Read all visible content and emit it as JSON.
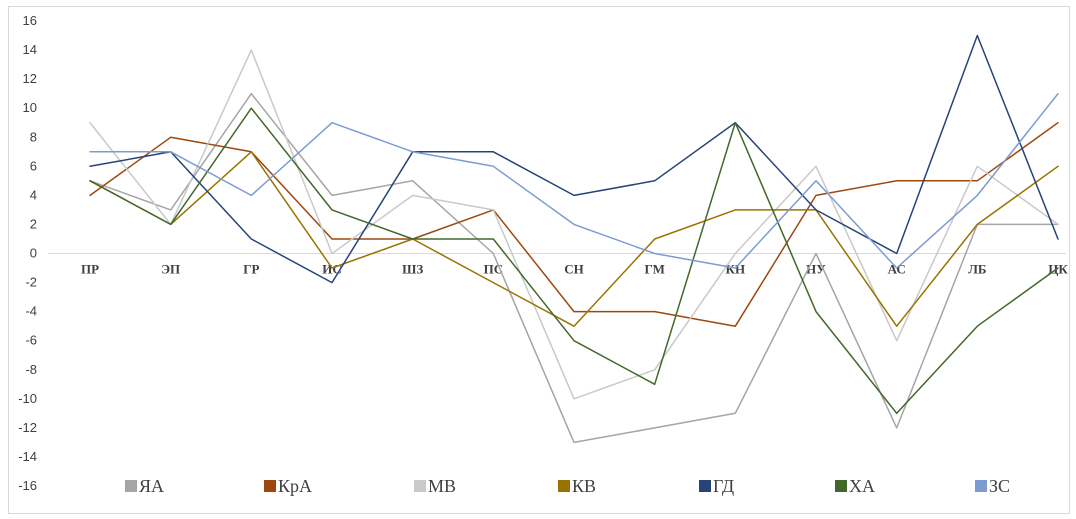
{
  "chart_data": {
    "type": "line",
    "title": "",
    "xlabel": "",
    "ylabel": "",
    "ylim": [
      -16,
      16
    ],
    "yticks": [
      16,
      14,
      12,
      10,
      8,
      6,
      4,
      2,
      0,
      -2,
      -4,
      -6,
      -8,
      -10,
      -12,
      -14,
      -16
    ],
    "grid": false,
    "legend_position": "bottom",
    "categories": [
      "ПР",
      "ЭП",
      "ГР",
      "ИС",
      "ШЗ",
      "ПС",
      "СН",
      "ГМ",
      "КН",
      "НУ",
      "АС",
      "ЛБ",
      "ЦК"
    ],
    "series": [
      {
        "name": "ЯА",
        "color": "#a5a5a5",
        "values": [
          5,
          3,
          11,
          4,
          5,
          0,
          -13,
          -12,
          -11,
          0,
          -12,
          2,
          2
        ]
      },
      {
        "name": "КрА",
        "color": "#9e480e",
        "values": [
          4,
          8,
          7,
          1,
          1,
          3,
          -4,
          -4,
          -5,
          4,
          5,
          5,
          9
        ]
      },
      {
        "name": "МВ",
        "color": "#c9c9c9",
        "values": [
          9,
          2,
          14,
          0,
          4,
          3,
          -10,
          -8,
          0,
          6,
          -6,
          6,
          2
        ]
      },
      {
        "name": "КВ",
        "color": "#997300",
        "values": [
          5,
          2,
          7,
          -1,
          1,
          -2,
          -5,
          1,
          3,
          3,
          -5,
          2,
          6
        ]
      },
      {
        "name": "ГД",
        "color": "#264478",
        "values": [
          6,
          7,
          1,
          -2,
          7,
          7,
          4,
          5,
          9,
          3,
          0,
          15,
          1
        ]
      },
      {
        "name": "ХА",
        "color": "#43682b",
        "values": [
          5,
          2,
          10,
          3,
          1,
          1,
          -6,
          -9,
          9,
          -4,
          -11,
          -5,
          -1
        ]
      },
      {
        "name": "ЗС",
        "color": "#7e9bd1",
        "values": [
          7,
          7,
          4,
          9,
          7,
          6,
          2,
          0,
          -1,
          5,
          -1,
          4,
          11
        ]
      }
    ]
  }
}
